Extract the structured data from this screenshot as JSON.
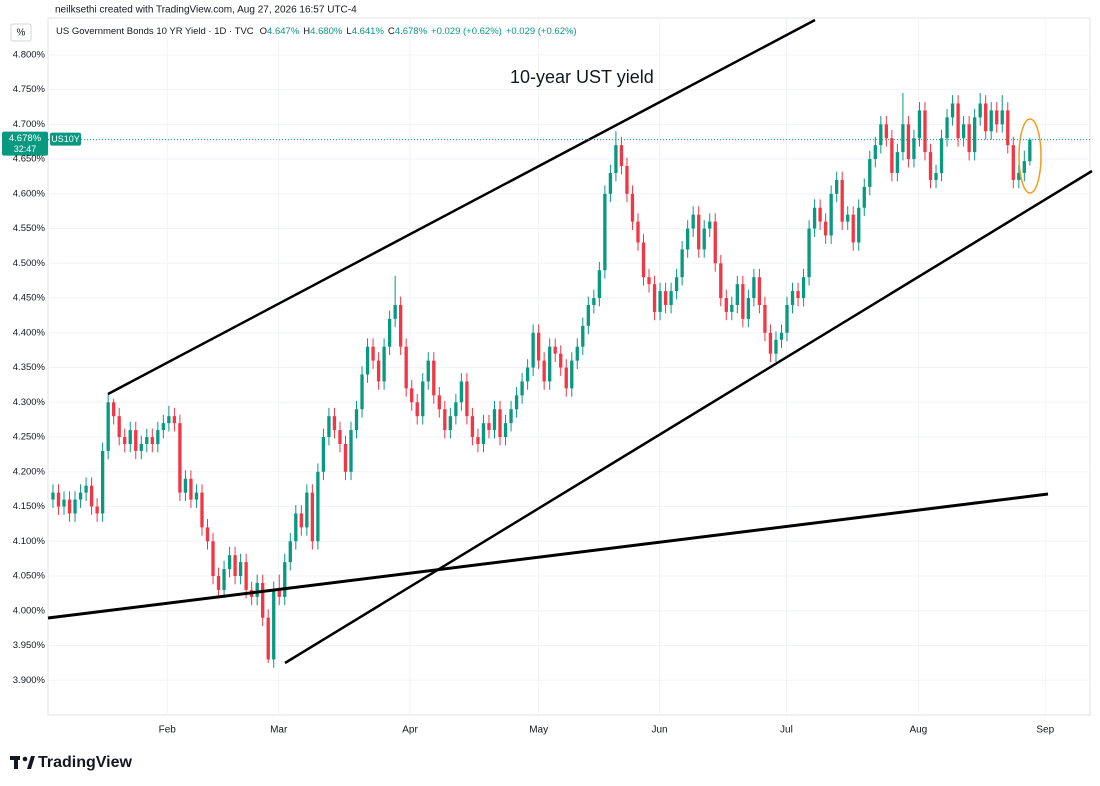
{
  "header": {
    "credit": "neilksethi created with TradingView.com, Aug 27, 2026 16:57 UTC-4",
    "unit_button": "%",
    "brand": "TradingView"
  },
  "legend": {
    "symbol": "US Government Bonds 10 YR Yield · 1D · TVC",
    "fields": [
      {
        "label": "O",
        "value": "4.647%"
      },
      {
        "label": "H",
        "value": "4.680%"
      },
      {
        "label": "L",
        "value": "4.641%"
      },
      {
        "label": "C",
        "value": "4.678%"
      }
    ],
    "change": "+0.029 (+0.62%)",
    "change2": "+0.029 (+0.62%)"
  },
  "chart_data": {
    "type": "candlestick",
    "annotation": "10-year UST yield",
    "last_price_label": "4.678%",
    "symbol_tag": "US10Y",
    "countdown": "32:47",
    "up_color": "#089981",
    "down_color": "#f23645",
    "grid": true,
    "ylim": [
      3.85,
      4.853
    ],
    "yticks": [
      {
        "value": 3.9,
        "label": "3.900%"
      },
      {
        "value": 3.95,
        "label": "3.950%"
      },
      {
        "value": 4.0,
        "label": "4.000%"
      },
      {
        "value": 4.05,
        "label": "4.050%"
      },
      {
        "value": 4.1,
        "label": "4.100%"
      },
      {
        "value": 4.15,
        "label": "4.150%"
      },
      {
        "value": 4.2,
        "label": "4.200%"
      },
      {
        "value": 4.25,
        "label": "4.250%"
      },
      {
        "value": 4.3,
        "label": "4.300%"
      },
      {
        "value": 4.35,
        "label": "4.350%"
      },
      {
        "value": 4.4,
        "label": "4.400%"
      },
      {
        "value": 4.45,
        "label": "4.450%"
      },
      {
        "value": 4.5,
        "label": "4.500%"
      },
      {
        "value": 4.55,
        "label": "4.550%"
      },
      {
        "value": 4.6,
        "label": "4.600%"
      },
      {
        "value": 4.65,
        "label": "4.650%"
      },
      {
        "value": 4.7,
        "label": "4.700%"
      },
      {
        "value": 4.75,
        "label": "4.750%"
      },
      {
        "value": 4.8,
        "label": "4.800%"
      }
    ],
    "xlim": [
      -0.9,
      187.9
    ],
    "xticks": [
      {
        "value": 20.7,
        "label": "Feb"
      },
      {
        "value": 40.9,
        "label": "Mar"
      },
      {
        "value": 64.7,
        "label": "Apr"
      },
      {
        "value": 88.0,
        "label": "May"
      },
      {
        "value": 109.9,
        "label": "Jun"
      },
      {
        "value": 132.9,
        "label": "Jul"
      },
      {
        "value": 156.8,
        "label": "Aug"
      },
      {
        "value": 179.8,
        "label": "Sep"
      }
    ],
    "ohlc": [
      [
        4.16,
        4.182,
        4.148,
        4.17
      ],
      [
        4.17,
        4.182,
        4.138,
        4.15
      ],
      [
        4.15,
        4.172,
        4.138,
        4.16
      ],
      [
        4.16,
        4.172,
        4.128,
        4.14
      ],
      [
        4.14,
        4.172,
        4.128,
        4.16
      ],
      [
        4.16,
        4.182,
        4.148,
        4.17
      ],
      [
        4.17,
        4.192,
        4.158,
        4.18
      ],
      [
        4.18,
        4.192,
        4.138,
        4.15
      ],
      [
        4.15,
        4.162,
        4.128,
        4.14
      ],
      [
        4.14,
        4.242,
        4.128,
        4.23
      ],
      [
        4.23,
        4.312,
        4.218,
        4.3
      ],
      [
        4.3,
        4.305,
        4.268,
        4.28
      ],
      [
        4.28,
        4.292,
        4.238,
        4.25
      ],
      [
        4.25,
        4.262,
        4.228,
        4.24
      ],
      [
        4.24,
        4.272,
        4.228,
        4.26
      ],
      [
        4.26,
        4.272,
        4.218,
        4.23
      ],
      [
        4.23,
        4.252,
        4.218,
        4.24
      ],
      [
        4.24,
        4.262,
        4.228,
        4.25
      ],
      [
        4.25,
        4.262,
        4.228,
        4.24
      ],
      [
        4.24,
        4.272,
        4.228,
        4.26
      ],
      [
        4.26,
        4.282,
        4.248,
        4.27
      ],
      [
        4.27,
        4.295,
        4.258,
        4.28
      ],
      [
        4.28,
        4.292,
        4.258,
        4.27
      ],
      [
        4.27,
        4.282,
        4.158,
        4.17
      ],
      [
        4.17,
        4.202,
        4.158,
        4.19
      ],
      [
        4.19,
        4.202,
        4.148,
        4.16
      ],
      [
        4.16,
        4.182,
        4.148,
        4.17
      ],
      [
        4.17,
        4.182,
        4.108,
        4.12
      ],
      [
        4.12,
        4.132,
        4.088,
        4.1
      ],
      [
        4.1,
        4.112,
        4.038,
        4.05
      ],
      [
        4.05,
        4.062,
        4.018,
        4.03
      ],
      [
        4.03,
        4.072,
        4.018,
        4.06
      ],
      [
        4.06,
        4.092,
        4.048,
        4.08
      ],
      [
        4.08,
        4.092,
        4.038,
        4.05
      ],
      [
        4.05,
        4.082,
        4.038,
        4.07
      ],
      [
        4.07,
        4.082,
        4.018,
        4.03
      ],
      [
        4.03,
        4.042,
        4.008,
        4.02
      ],
      [
        4.02,
        4.052,
        4.008,
        4.04
      ],
      [
        4.04,
        4.052,
        3.978,
        3.99
      ],
      [
        3.99,
        4.002,
        3.925,
        3.93
      ],
      [
        3.93,
        4.042,
        3.918,
        4.03
      ],
      [
        4.03,
        4.052,
        4.008,
        4.02
      ],
      [
        4.02,
        4.082,
        4.008,
        4.07
      ],
      [
        4.07,
        4.112,
        4.058,
        4.1
      ],
      [
        4.1,
        4.152,
        4.088,
        4.14
      ],
      [
        4.14,
        4.152,
        4.108,
        4.12
      ],
      [
        4.12,
        4.182,
        4.108,
        4.17
      ],
      [
        4.17,
        4.182,
        4.088,
        4.1
      ],
      [
        4.1,
        4.212,
        4.088,
        4.2
      ],
      [
        4.2,
        4.262,
        4.188,
        4.25
      ],
      [
        4.25,
        4.292,
        4.238,
        4.28
      ],
      [
        4.28,
        4.292,
        4.248,
        4.26
      ],
      [
        4.26,
        4.272,
        4.228,
        4.24
      ],
      [
        4.24,
        4.252,
        4.188,
        4.2
      ],
      [
        4.2,
        4.272,
        4.188,
        4.26
      ],
      [
        4.26,
        4.302,
        4.248,
        4.29
      ],
      [
        4.29,
        4.352,
        4.278,
        4.34
      ],
      [
        4.34,
        4.392,
        4.328,
        4.38
      ],
      [
        4.38,
        4.392,
        4.348,
        4.36
      ],
      [
        4.36,
        4.372,
        4.318,
        4.33
      ],
      [
        4.33,
        4.392,
        4.318,
        4.38
      ],
      [
        4.38,
        4.432,
        4.368,
        4.42
      ],
      [
        4.42,
        4.482,
        4.408,
        4.44
      ],
      [
        4.44,
        4.452,
        4.368,
        4.38
      ],
      [
        4.38,
        4.392,
        4.308,
        4.32
      ],
      [
        4.32,
        4.332,
        4.288,
        4.3
      ],
      [
        4.3,
        4.312,
        4.268,
        4.28
      ],
      [
        4.28,
        4.342,
        4.268,
        4.33
      ],
      [
        4.33,
        4.372,
        4.318,
        4.36
      ],
      [
        4.36,
        4.372,
        4.298,
        4.31
      ],
      [
        4.31,
        4.322,
        4.278,
        4.29
      ],
      [
        4.29,
        4.302,
        4.248,
        4.26
      ],
      [
        4.26,
        4.292,
        4.248,
        4.28
      ],
      [
        4.28,
        4.312,
        4.268,
        4.3
      ],
      [
        4.3,
        4.342,
        4.288,
        4.33
      ],
      [
        4.33,
        4.342,
        4.268,
        4.28
      ],
      [
        4.28,
        4.292,
        4.238,
        4.25
      ],
      [
        4.25,
        4.262,
        4.228,
        4.24
      ],
      [
        4.24,
        4.282,
        4.228,
        4.27
      ],
      [
        4.27,
        4.282,
        4.248,
        4.26
      ],
      [
        4.26,
        4.302,
        4.248,
        4.29
      ],
      [
        4.29,
        4.302,
        4.238,
        4.25
      ],
      [
        4.25,
        4.282,
        4.238,
        4.27
      ],
      [
        4.27,
        4.302,
        4.258,
        4.29
      ],
      [
        4.29,
        4.322,
        4.278,
        4.31
      ],
      [
        4.31,
        4.342,
        4.298,
        4.33
      ],
      [
        4.33,
        4.362,
        4.318,
        4.35
      ],
      [
        4.35,
        4.412,
        4.338,
        4.4
      ],
      [
        4.4,
        4.412,
        4.348,
        4.36
      ],
      [
        4.36,
        4.372,
        4.318,
        4.33
      ],
      [
        4.33,
        4.392,
        4.318,
        4.38
      ],
      [
        4.38,
        4.392,
        4.358,
        4.37
      ],
      [
        4.37,
        4.382,
        4.338,
        4.35
      ],
      [
        4.35,
        4.362,
        4.308,
        4.32
      ],
      [
        4.32,
        4.372,
        4.308,
        4.36
      ],
      [
        4.36,
        4.392,
        4.348,
        4.38
      ],
      [
        4.38,
        4.422,
        4.368,
        4.41
      ],
      [
        4.41,
        4.452,
        4.398,
        4.44
      ],
      [
        4.44,
        4.462,
        4.428,
        4.45
      ],
      [
        4.45,
        4.502,
        4.438,
        4.49
      ],
      [
        4.49,
        4.612,
        4.478,
        4.6
      ],
      [
        4.6,
        4.642,
        4.588,
        4.63
      ],
      [
        4.63,
        4.69,
        4.618,
        4.67
      ],
      [
        4.67,
        4.682,
        4.628,
        4.64
      ],
      [
        4.64,
        4.652,
        4.588,
        4.6
      ],
      [
        4.6,
        4.612,
        4.548,
        4.56
      ],
      [
        4.56,
        4.572,
        4.518,
        4.53
      ],
      [
        4.53,
        4.542,
        4.468,
        4.48
      ],
      [
        4.48,
        4.492,
        4.458,
        4.47
      ],
      [
        4.47,
        4.482,
        4.418,
        4.43
      ],
      [
        4.43,
        4.472,
        4.418,
        4.46
      ],
      [
        4.46,
        4.472,
        4.428,
        4.44
      ],
      [
        4.44,
        4.472,
        4.428,
        4.46
      ],
      [
        4.46,
        4.492,
        4.448,
        4.48
      ],
      [
        4.48,
        4.532,
        4.468,
        4.52
      ],
      [
        4.52,
        4.562,
        4.508,
        4.55
      ],
      [
        4.55,
        4.582,
        4.538,
        4.57
      ],
      [
        4.57,
        4.582,
        4.508,
        4.52
      ],
      [
        4.52,
        4.562,
        4.508,
        4.55
      ],
      [
        4.55,
        4.572,
        4.538,
        4.56
      ],
      [
        4.56,
        4.572,
        4.488,
        4.5
      ],
      [
        4.5,
        4.512,
        4.438,
        4.45
      ],
      [
        4.45,
        4.462,
        4.418,
        4.43
      ],
      [
        4.43,
        4.452,
        4.418,
        4.44
      ],
      [
        4.44,
        4.482,
        4.428,
        4.47
      ],
      [
        4.47,
        4.482,
        4.408,
        4.42
      ],
      [
        4.42,
        4.462,
        4.408,
        4.45
      ],
      [
        4.45,
        4.492,
        4.438,
        4.48
      ],
      [
        4.48,
        4.492,
        4.428,
        4.44
      ],
      [
        4.44,
        4.452,
        4.388,
        4.4
      ],
      [
        4.4,
        4.412,
        4.358,
        4.37
      ],
      [
        4.37,
        4.402,
        4.358,
        4.39
      ],
      [
        4.39,
        4.412,
        4.378,
        4.4
      ],
      [
        4.4,
        4.452,
        4.388,
        4.44
      ],
      [
        4.44,
        4.472,
        4.428,
        4.46
      ],
      [
        4.46,
        4.472,
        4.438,
        4.45
      ],
      [
        4.45,
        4.492,
        4.438,
        4.48
      ],
      [
        4.48,
        4.562,
        4.468,
        4.55
      ],
      [
        4.55,
        4.592,
        4.538,
        4.58
      ],
      [
        4.58,
        4.592,
        4.548,
        4.56
      ],
      [
        4.56,
        4.572,
        4.528,
        4.54
      ],
      [
        4.54,
        4.612,
        4.528,
        4.6
      ],
      [
        4.6,
        4.632,
        4.588,
        4.62
      ],
      [
        4.62,
        4.632,
        4.548,
        4.56
      ],
      [
        4.56,
        4.582,
        4.548,
        4.57
      ],
      [
        4.57,
        4.582,
        4.518,
        4.53
      ],
      [
        4.53,
        4.592,
        4.518,
        4.58
      ],
      [
        4.58,
        4.622,
        4.568,
        4.61
      ],
      [
        4.61,
        4.662,
        4.598,
        4.65
      ],
      [
        4.65,
        4.682,
        4.638,
        4.67
      ],
      [
        4.67,
        4.712,
        4.658,
        4.7
      ],
      [
        4.7,
        4.712,
        4.668,
        4.68
      ],
      [
        4.68,
        4.692,
        4.618,
        4.63
      ],
      [
        4.63,
        4.672,
        4.618,
        4.66
      ],
      [
        4.66,
        4.745,
        4.648,
        4.7
      ],
      [
        4.7,
        4.712,
        4.638,
        4.65
      ],
      [
        4.65,
        4.692,
        4.638,
        4.68
      ],
      [
        4.68,
        4.732,
        4.668,
        4.72
      ],
      [
        4.72,
        4.732,
        4.648,
        4.66
      ],
      [
        4.66,
        4.672,
        4.608,
        4.62
      ],
      [
        4.62,
        4.642,
        4.608,
        4.63
      ],
      [
        4.63,
        4.692,
        4.618,
        4.68
      ],
      [
        4.68,
        4.722,
        4.668,
        4.71
      ],
      [
        4.71,
        4.742,
        4.698,
        4.73
      ],
      [
        4.73,
        4.742,
        4.668,
        4.68
      ],
      [
        4.68,
        4.712,
        4.668,
        4.7
      ],
      [
        4.7,
        4.712,
        4.648,
        4.66
      ],
      [
        4.66,
        4.722,
        4.648,
        4.71
      ],
      [
        4.71,
        4.745,
        4.698,
        4.73
      ],
      [
        4.73,
        4.742,
        4.678,
        4.69
      ],
      [
        4.69,
        4.732,
        4.678,
        4.72
      ],
      [
        4.72,
        4.732,
        4.688,
        4.7
      ],
      [
        4.7,
        4.742,
        4.688,
        4.72
      ],
      [
        4.72,
        4.732,
        4.658,
        4.67
      ],
      [
        4.67,
        4.682,
        4.608,
        4.62
      ],
      [
        4.62,
        4.642,
        4.608,
        4.63
      ],
      [
        4.63,
        4.662,
        4.618,
        4.647
      ],
      [
        4.647,
        4.68,
        4.641,
        4.678
      ]
    ]
  }
}
